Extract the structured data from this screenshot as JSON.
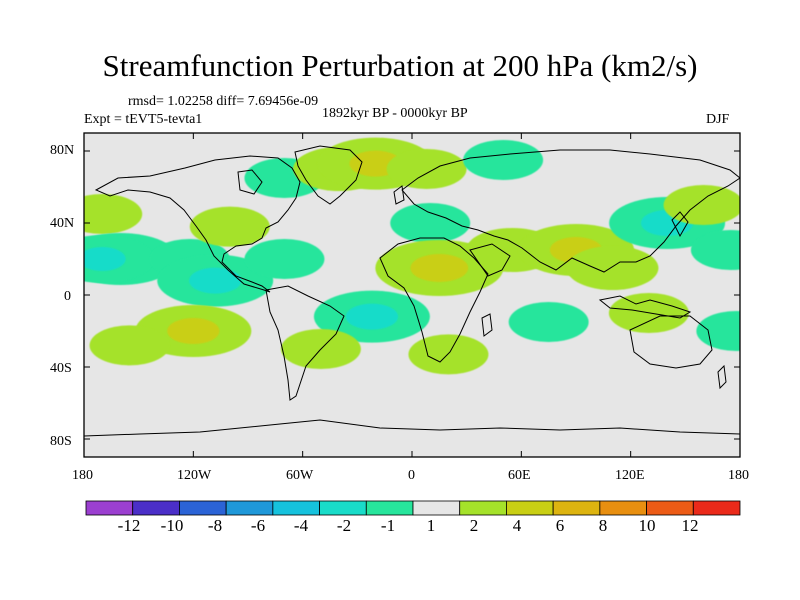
{
  "title": "Streamfunction Perturbation at 200 hPa (km2/s)",
  "rmsd_line": "rmsd= 1.02258 diff= 7.69456e-09",
  "period": "1892kyr BP - 0000kyr BP",
  "experiment": "Expt = tEVT5-tevta1",
  "season": "DJF",
  "lat_ticks": [
    "80N",
    "40N",
    "0",
    "40S",
    "80S"
  ],
  "lon_ticks": [
    "180",
    "120W",
    "60W",
    "0",
    "60E",
    "120E",
    "180"
  ],
  "colorbar": {
    "labels": [
      "-12",
      "-10",
      "-8",
      "-6",
      "-4",
      "-2",
      "-1",
      "1",
      "2",
      "4",
      "6",
      "8",
      "10",
      "12"
    ],
    "colors": [
      "#9b3fd0",
      "#4b2fc8",
      "#2b63d6",
      "#1f98d9",
      "#16c2dd",
      "#19dcc9",
      "#27e59c",
      "#e6e6e6",
      "#a5e22a",
      "#c9cf14",
      "#ddb410",
      "#e88f10",
      "#ec5b16",
      "#ea2a1a"
    ]
  },
  "field_blobs": [
    {
      "lon": -170,
      "lat": 45,
      "value": 1.5
    },
    {
      "lon": -160,
      "lat": 20,
      "value": -3
    },
    {
      "lon": -170,
      "lat": 20,
      "value": -2.5
    },
    {
      "lon": -122,
      "lat": 20,
      "value": -1.5
    },
    {
      "lon": -100,
      "lat": 38,
      "value": 1.5
    },
    {
      "lon": -108,
      "lat": 8,
      "value": -3
    },
    {
      "lon": -70,
      "lat": 20,
      "value": -1.5
    },
    {
      "lon": -70,
      "lat": 65,
      "value": -1.5
    },
    {
      "lon": -22,
      "lat": -12,
      "value": -3
    },
    {
      "lon": -120,
      "lat": -20,
      "value": 3
    },
    {
      "lon": -155,
      "lat": -28,
      "value": 1.5
    },
    {
      "lon": -50,
      "lat": -30,
      "value": 1.5
    },
    {
      "lon": -40,
      "lat": 70,
      "value": 2
    },
    {
      "lon": -20,
      "lat": 73,
      "value": 3
    },
    {
      "lon": 8,
      "lat": 70,
      "value": 1.5
    },
    {
      "lon": 50,
      "lat": 75,
      "value": -1.5
    },
    {
      "lon": 10,
      "lat": 40,
      "value": -1.5
    },
    {
      "lon": 15,
      "lat": 15,
      "value": 3.5
    },
    {
      "lon": 55,
      "lat": 25,
      "value": 2
    },
    {
      "lon": 90,
      "lat": 25,
      "value": 3
    },
    {
      "lon": 110,
      "lat": 15,
      "value": 2
    },
    {
      "lon": 20,
      "lat": -33,
      "value": 1.5
    },
    {
      "lon": 75,
      "lat": -15,
      "value": -1.5
    },
    {
      "lon": 130,
      "lat": -10,
      "value": 1.5
    },
    {
      "lon": 140,
      "lat": 40,
      "value": -3
    },
    {
      "lon": 160,
      "lat": 50,
      "value": 1.5
    },
    {
      "lon": 175,
      "lat": 25,
      "value": -1.5
    },
    {
      "lon": 178,
      "lat": -20,
      "value": -1.5
    }
  ]
}
